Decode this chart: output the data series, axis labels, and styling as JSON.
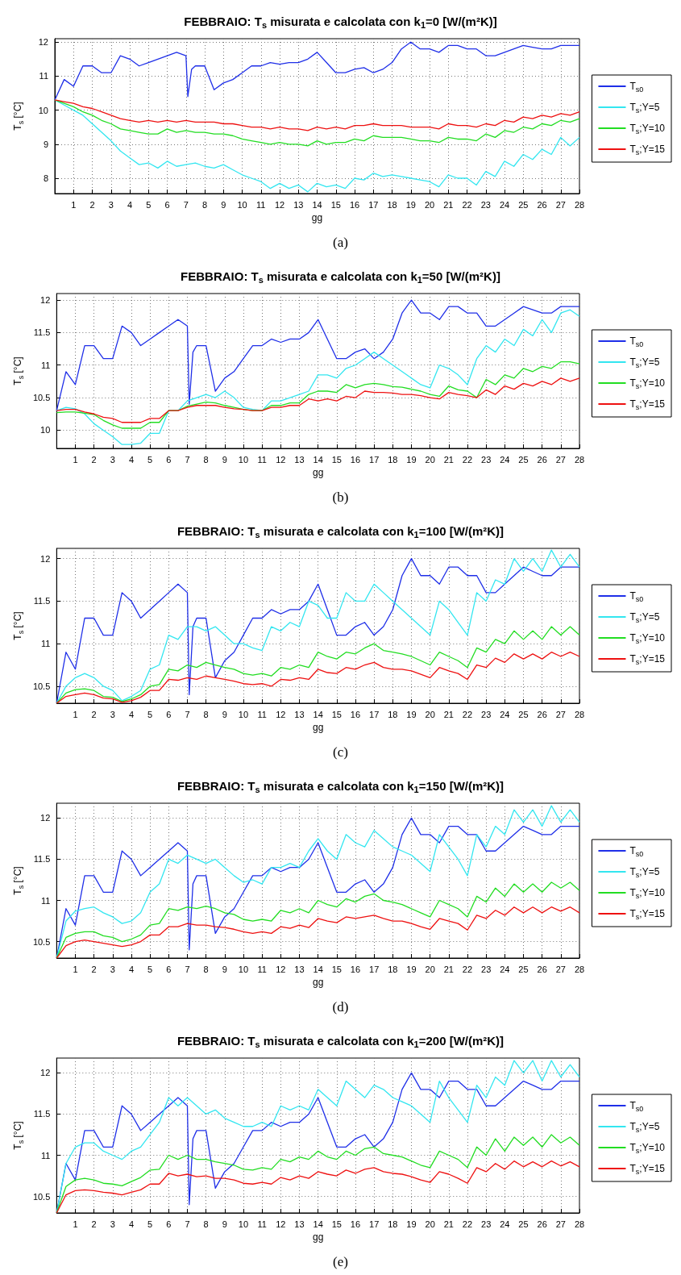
{
  "chart_data": [
    {
      "type": "line",
      "title": "FEBBRAIO: T$_{s}$ misurata e calcolata con k$_{1}$=0 [W/(m²K)]",
      "xlabel": "gg",
      "ylabel": "T$_{s}$ [°C]",
      "annotations": [
        "(a)"
      ],
      "grid": true,
      "legend": "right",
      "marker": "none",
      "line_style": "solid",
      "xlim": [
        0,
        28
      ],
      "xticks": [
        1,
        2,
        3,
        4,
        5,
        6,
        7,
        8,
        9,
        10,
        11,
        12,
        13,
        14,
        15,
        16,
        17,
        18,
        19,
        20,
        21,
        22,
        23,
        24,
        25,
        26,
        27,
        28
      ],
      "ylim": [
        7.55,
        12.1
      ],
      "yticks": [
        8,
        9,
        10,
        11,
        12
      ],
      "x": [
        0,
        0.5,
        1,
        1.5,
        2,
        2.5,
        3,
        3.5,
        4,
        4.5,
        5,
        5.5,
        6,
        6.5,
        7,
        7.5,
        8,
        8.5,
        9,
        9.5,
        10,
        10.5,
        11,
        11.5,
        12,
        12.5,
        13,
        13.5,
        14,
        14.5,
        15,
        15.5,
        16,
        16.5,
        17,
        17.5,
        18,
        18.5,
        19,
        19.5,
        20,
        20.5,
        21,
        21.5,
        22,
        22.5,
        23,
        23.5,
        24,
        24.5,
        25,
        25.5,
        26,
        26.5,
        27,
        27.5,
        28
      ],
      "series": [
        {
          "name": "T$_{s0}$",
          "color": "#1f2fe8",
          "x": [
            0,
            0.5,
            1,
            1.5,
            2,
            2.5,
            3,
            3.5,
            4,
            4.5,
            5,
            5.5,
            6,
            6.5,
            7,
            7.1,
            7.3,
            7.5,
            8,
            8.5,
            9,
            9.5,
            10,
            10.5,
            11,
            11.5,
            12,
            12.5,
            13,
            13.5,
            14,
            14.5,
            15,
            15.5,
            16,
            16.5,
            17,
            17.5,
            18,
            18.5,
            19,
            19.5,
            20,
            20.5,
            21,
            21.5,
            22,
            22.5,
            23,
            23.5,
            24,
            24.5,
            25,
            25.5,
            26,
            26.5,
            27,
            27.5,
            28
          ],
          "values": [
            10.3,
            10.9,
            10.7,
            11.3,
            11.3,
            11.1,
            11.1,
            11.6,
            11.5,
            11.3,
            11.4,
            11.5,
            11.6,
            11.7,
            11.6,
            10.4,
            11.2,
            11.3,
            11.3,
            10.6,
            10.8,
            10.9,
            11.1,
            11.3,
            11.3,
            11.4,
            11.35,
            11.4,
            11.4,
            11.5,
            11.7,
            11.4,
            11.1,
            11.1,
            11.2,
            11.25,
            11.1,
            11.2,
            11.4,
            11.8,
            12.0,
            11.8,
            11.8,
            11.7,
            11.9,
            11.9,
            11.8,
            11.8,
            11.6,
            11.6,
            11.7,
            11.8,
            11.9,
            11.85,
            11.8,
            11.8,
            11.9,
            11.9,
            11.9
          ]
        },
        {
          "name": "T$_{s}$;Y=5",
          "color": "#33e6f0",
          "values": [
            10.3,
            10.15,
            10.0,
            9.85,
            9.6,
            9.35,
            9.1,
            8.8,
            8.6,
            8.4,
            8.45,
            8.3,
            8.5,
            8.35,
            8.4,
            8.45,
            8.35,
            8.3,
            8.4,
            8.25,
            8.1,
            8.0,
            7.9,
            7.7,
            7.85,
            7.7,
            7.8,
            7.6,
            7.85,
            7.75,
            7.8,
            7.7,
            8.0,
            7.95,
            8.15,
            8.05,
            8.1,
            8.05,
            8.0,
            7.95,
            7.9,
            7.75,
            8.1,
            8.0,
            8.0,
            7.8,
            8.2,
            8.05,
            8.5,
            8.35,
            8.7,
            8.55,
            8.85,
            8.7,
            9.2,
            8.95,
            9.2
          ]
        },
        {
          "name": "T$_{s}$;Y=10",
          "color": "#22dd22",
          "values": [
            10.3,
            10.2,
            10.1,
            9.95,
            9.85,
            9.7,
            9.6,
            9.45,
            9.4,
            9.35,
            9.3,
            9.3,
            9.45,
            9.35,
            9.4,
            9.35,
            9.35,
            9.3,
            9.3,
            9.25,
            9.15,
            9.1,
            9.05,
            9.0,
            9.05,
            9.0,
            9.0,
            8.95,
            9.1,
            9.0,
            9.05,
            9.05,
            9.15,
            9.1,
            9.25,
            9.2,
            9.2,
            9.2,
            9.15,
            9.1,
            9.1,
            9.05,
            9.2,
            9.15,
            9.15,
            9.1,
            9.3,
            9.2,
            9.4,
            9.35,
            9.5,
            9.45,
            9.6,
            9.55,
            9.7,
            9.65,
            9.75
          ]
        },
        {
          "name": "T$_{s}$;Y=15",
          "color": "#ee1111",
          "values": [
            10.3,
            10.25,
            10.2,
            10.1,
            10.05,
            9.95,
            9.85,
            9.75,
            9.7,
            9.65,
            9.7,
            9.65,
            9.7,
            9.65,
            9.7,
            9.65,
            9.65,
            9.65,
            9.6,
            9.6,
            9.55,
            9.5,
            9.5,
            9.45,
            9.5,
            9.45,
            9.45,
            9.4,
            9.5,
            9.45,
            9.5,
            9.45,
            9.55,
            9.55,
            9.6,
            9.55,
            9.55,
            9.55,
            9.5,
            9.5,
            9.5,
            9.45,
            9.6,
            9.55,
            9.55,
            9.5,
            9.6,
            9.55,
            9.7,
            9.65,
            9.8,
            9.75,
            9.85,
            9.8,
            9.9,
            9.85,
            9.95
          ]
        }
      ]
    },
    {
      "type": "line",
      "title": "FEBBRAIO: T$_{s}$ misurata e calcolata con k$_{1}$=50 [W/(m²K)]",
      "xlabel": "gg",
      "ylabel": "T$_{s}$ [°C]",
      "annotations": [
        "(b)"
      ],
      "grid": true,
      "legend": "right",
      "marker": "none",
      "line_style": "solid",
      "xlim": [
        0,
        28
      ],
      "xticks": [
        1,
        2,
        3,
        4,
        5,
        6,
        7,
        8,
        9,
        10,
        11,
        12,
        13,
        14,
        15,
        16,
        17,
        18,
        19,
        20,
        21,
        22,
        23,
        24,
        25,
        26,
        27,
        28
      ],
      "ylim": [
        9.72,
        12.1
      ],
      "yticks": [
        10,
        10.5,
        11,
        11.5,
        12
      ],
      "x": [
        0,
        0.5,
        1,
        1.5,
        2,
        2.5,
        3,
        3.5,
        4,
        4.5,
        5,
        5.5,
        6,
        6.5,
        7,
        7.5,
        8,
        8.5,
        9,
        9.5,
        10,
        10.5,
        11,
        11.5,
        12,
        12.5,
        13,
        13.5,
        14,
        14.5,
        15,
        15.5,
        16,
        16.5,
        17,
        17.5,
        18,
        18.5,
        19,
        19.5,
        20,
        20.5,
        21,
        21.5,
        22,
        22.5,
        23,
        23.5,
        24,
        24.5,
        25,
        25.5,
        26,
        26.5,
        27,
        27.5,
        28
      ],
      "series": [
        {
          "name": "T$_{s0}$",
          "color": "#1f2fe8",
          "x": [
            0,
            0.5,
            1,
            1.5,
            2,
            2.5,
            3,
            3.5,
            4,
            4.5,
            5,
            5.5,
            6,
            6.5,
            7,
            7.1,
            7.3,
            7.5,
            8,
            8.5,
            9,
            9.5,
            10,
            10.5,
            11,
            11.5,
            12,
            12.5,
            13,
            13.5,
            14,
            14.5,
            15,
            15.5,
            16,
            16.5,
            17,
            17.5,
            18,
            18.5,
            19,
            19.5,
            20,
            20.5,
            21,
            21.5,
            22,
            22.5,
            23,
            23.5,
            24,
            24.5,
            25,
            25.5,
            26,
            26.5,
            27,
            27.5,
            28
          ],
          "values": [
            10.3,
            10.9,
            10.7,
            11.3,
            11.3,
            11.1,
            11.1,
            11.6,
            11.5,
            11.3,
            11.4,
            11.5,
            11.6,
            11.7,
            11.6,
            10.4,
            11.2,
            11.3,
            11.3,
            10.6,
            10.8,
            10.9,
            11.1,
            11.3,
            11.3,
            11.4,
            11.35,
            11.4,
            11.4,
            11.5,
            11.7,
            11.4,
            11.1,
            11.1,
            11.2,
            11.25,
            11.1,
            11.2,
            11.4,
            11.8,
            12.0,
            11.8,
            11.8,
            11.7,
            11.9,
            11.9,
            11.8,
            11.8,
            11.6,
            11.6,
            11.7,
            11.8,
            11.9,
            11.85,
            11.8,
            11.8,
            11.9,
            11.9,
            11.9
          ]
        },
        {
          "name": "T$_{s}$;Y=5",
          "color": "#33e6f0",
          "values": [
            10.3,
            10.35,
            10.33,
            10.25,
            10.1,
            10.0,
            9.9,
            9.78,
            9.78,
            9.8,
            9.95,
            9.95,
            10.3,
            10.3,
            10.45,
            10.5,
            10.55,
            10.5,
            10.6,
            10.5,
            10.35,
            10.32,
            10.3,
            10.45,
            10.45,
            10.5,
            10.55,
            10.6,
            10.85,
            10.85,
            10.8,
            10.95,
            11.0,
            11.1,
            11.2,
            11.1,
            11.0,
            10.9,
            10.8,
            10.7,
            10.65,
            11.0,
            10.95,
            10.85,
            10.7,
            11.1,
            11.3,
            11.2,
            11.4,
            11.3,
            11.55,
            11.45,
            11.7,
            11.5,
            11.8,
            11.85,
            11.75
          ]
        },
        {
          "name": "T$_{s}$;Y=10",
          "color": "#22dd22",
          "values": [
            10.27,
            10.28,
            10.28,
            10.26,
            10.24,
            10.15,
            10.08,
            10.03,
            10.03,
            10.03,
            10.12,
            10.12,
            10.3,
            10.3,
            10.37,
            10.4,
            10.43,
            10.42,
            10.38,
            10.35,
            10.32,
            10.3,
            10.3,
            10.38,
            10.38,
            10.42,
            10.42,
            10.55,
            10.6,
            10.6,
            10.58,
            10.7,
            10.65,
            10.7,
            10.72,
            10.7,
            10.67,
            10.66,
            10.63,
            10.6,
            10.55,
            10.52,
            10.68,
            10.62,
            10.6,
            10.5,
            10.78,
            10.7,
            10.85,
            10.8,
            10.95,
            10.9,
            10.98,
            10.95,
            11.05,
            11.05,
            11.02
          ]
        },
        {
          "name": "T$_{s}$;Y=15",
          "color": "#ee1111",
          "values": [
            10.3,
            10.32,
            10.32,
            10.28,
            10.25,
            10.2,
            10.18,
            10.12,
            10.12,
            10.12,
            10.18,
            10.18,
            10.3,
            10.3,
            10.35,
            10.38,
            10.38,
            10.38,
            10.35,
            10.33,
            10.32,
            10.3,
            10.3,
            10.35,
            10.35,
            10.38,
            10.38,
            10.48,
            10.45,
            10.48,
            10.45,
            10.52,
            10.5,
            10.6,
            10.58,
            10.58,
            10.57,
            10.55,
            10.55,
            10.53,
            10.5,
            10.48,
            10.58,
            10.55,
            10.53,
            10.5,
            10.62,
            10.55,
            10.68,
            10.63,
            10.72,
            10.68,
            10.75,
            10.7,
            10.8,
            10.75,
            10.8
          ]
        }
      ]
    },
    {
      "type": "line",
      "title": "FEBBRAIO: T$_{s}$ misurata e calcolata con k$_{1}$=100 [W/(m²K)]",
      "xlabel": "gg",
      "ylabel": "T$_{s}$ [°C]",
      "annotations": [
        "(c)"
      ],
      "grid": true,
      "legend": "right",
      "marker": "none",
      "line_style": "solid",
      "xlim": [
        0,
        28
      ],
      "xticks": [
        1,
        2,
        3,
        4,
        5,
        6,
        7,
        8,
        9,
        10,
        11,
        12,
        13,
        14,
        15,
        16,
        17,
        18,
        19,
        20,
        21,
        22,
        23,
        24,
        25,
        26,
        27,
        28
      ],
      "ylim": [
        10.3,
        12.12
      ],
      "yticks": [
        10.5,
        11,
        11.5,
        12
      ],
      "x": [
        0,
        0.5,
        1,
        1.5,
        2,
        2.5,
        3,
        3.5,
        4,
        4.5,
        5,
        5.5,
        6,
        6.5,
        7,
        7.5,
        8,
        8.5,
        9,
        9.5,
        10,
        10.5,
        11,
        11.5,
        12,
        12.5,
        13,
        13.5,
        14,
        14.5,
        15,
        15.5,
        16,
        16.5,
        17,
        17.5,
        18,
        18.5,
        19,
        19.5,
        20,
        20.5,
        21,
        21.5,
        22,
        22.5,
        23,
        23.5,
        24,
        24.5,
        25,
        25.5,
        26,
        26.5,
        27,
        27.5,
        28
      ],
      "series": [
        {
          "name": "T$_{s0}$",
          "color": "#1f2fe8",
          "x": [
            0,
            0.5,
            1,
            1.5,
            2,
            2.5,
            3,
            3.5,
            4,
            4.5,
            5,
            5.5,
            6,
            6.5,
            7,
            7.1,
            7.3,
            7.5,
            8,
            8.5,
            9,
            9.5,
            10,
            10.5,
            11,
            11.5,
            12,
            12.5,
            13,
            13.5,
            14,
            14.5,
            15,
            15.5,
            16,
            16.5,
            17,
            17.5,
            18,
            18.5,
            19,
            19.5,
            20,
            20.5,
            21,
            21.5,
            22,
            22.5,
            23,
            23.5,
            24,
            24.5,
            25,
            25.5,
            26,
            26.5,
            27,
            27.5,
            28
          ],
          "values": [
            10.3,
            10.9,
            10.7,
            11.3,
            11.3,
            11.1,
            11.1,
            11.6,
            11.5,
            11.3,
            11.4,
            11.5,
            11.6,
            11.7,
            11.6,
            10.4,
            11.2,
            11.3,
            11.3,
            10.6,
            10.8,
            10.9,
            11.1,
            11.3,
            11.3,
            11.4,
            11.35,
            11.4,
            11.4,
            11.5,
            11.7,
            11.4,
            11.1,
            11.1,
            11.2,
            11.25,
            11.1,
            11.2,
            11.4,
            11.8,
            12.0,
            11.8,
            11.8,
            11.7,
            11.9,
            11.9,
            11.8,
            11.8,
            11.6,
            11.6,
            11.7,
            11.8,
            11.9,
            11.85,
            11.8,
            11.8,
            11.9,
            11.9,
            11.9
          ]
        },
        {
          "name": "T$_{s}$;Y=5",
          "color": "#33e6f0",
          "values": [
            10.3,
            10.5,
            10.6,
            10.65,
            10.6,
            10.5,
            10.45,
            10.33,
            10.38,
            10.45,
            10.7,
            10.75,
            11.1,
            11.05,
            11.2,
            11.2,
            11.15,
            11.2,
            11.1,
            11.0,
            11.0,
            10.95,
            10.92,
            11.2,
            11.15,
            11.25,
            11.2,
            11.5,
            11.45,
            11.3,
            11.3,
            11.6,
            11.5,
            11.5,
            11.7,
            11.6,
            11.5,
            11.4,
            11.3,
            11.2,
            11.1,
            11.5,
            11.4,
            11.25,
            11.1,
            11.6,
            11.5,
            11.75,
            11.7,
            12.0,
            11.85,
            12.0,
            11.85,
            12.1,
            11.9,
            12.05,
            11.9
          ]
        },
        {
          "name": "T$_{s}$;Y=10",
          "color": "#22dd22",
          "values": [
            10.3,
            10.42,
            10.46,
            10.47,
            10.45,
            10.38,
            10.37,
            10.32,
            10.35,
            10.4,
            10.5,
            10.52,
            10.7,
            10.68,
            10.75,
            10.72,
            10.78,
            10.75,
            10.72,
            10.7,
            10.65,
            10.63,
            10.65,
            10.62,
            10.72,
            10.7,
            10.75,
            10.72,
            10.9,
            10.85,
            10.82,
            10.9,
            10.88,
            10.95,
            11.0,
            10.92,
            10.9,
            10.88,
            10.85,
            10.8,
            10.75,
            10.9,
            10.85,
            10.8,
            10.72,
            10.95,
            10.9,
            11.05,
            11.0,
            11.15,
            11.05,
            11.15,
            11.05,
            11.2,
            11.1,
            11.2,
            11.1
          ]
        },
        {
          "name": "T$_{s}$;Y=15",
          "color": "#ee1111",
          "values": [
            10.3,
            10.38,
            10.4,
            10.42,
            10.4,
            10.36,
            10.35,
            10.31,
            10.33,
            10.37,
            10.45,
            10.45,
            10.58,
            10.57,
            10.6,
            10.58,
            10.62,
            10.6,
            10.58,
            10.56,
            10.53,
            10.52,
            10.53,
            10.5,
            10.58,
            10.57,
            10.6,
            10.58,
            10.7,
            10.66,
            10.65,
            10.72,
            10.7,
            10.75,
            10.78,
            10.72,
            10.7,
            10.7,
            10.68,
            10.64,
            10.6,
            10.72,
            10.68,
            10.65,
            10.58,
            10.75,
            10.72,
            10.83,
            10.78,
            10.88,
            10.82,
            10.88,
            10.82,
            10.9,
            10.85,
            10.9,
            10.85
          ]
        }
      ]
    },
    {
      "type": "line",
      "title": "FEBBRAIO: T$_{s}$ misurata e calcolata con k$_{1}$=150 [W/(m²K)]",
      "xlabel": "gg",
      "ylabel": "T$_{s}$ [°C]",
      "annotations": [
        "(d)"
      ],
      "grid": true,
      "legend": "right",
      "marker": "none",
      "line_style": "solid",
      "xlim": [
        0,
        28
      ],
      "xticks": [
        1,
        2,
        3,
        4,
        5,
        6,
        7,
        8,
        9,
        10,
        11,
        12,
        13,
        14,
        15,
        16,
        17,
        18,
        19,
        20,
        21,
        22,
        23,
        24,
        25,
        26,
        27,
        28
      ],
      "ylim": [
        10.3,
        12.18
      ],
      "yticks": [
        10.5,
        11,
        11.5,
        12
      ],
      "x": [
        0,
        0.5,
        1,
        1.5,
        2,
        2.5,
        3,
        3.5,
        4,
        4.5,
        5,
        5.5,
        6,
        6.5,
        7,
        7.5,
        8,
        8.5,
        9,
        9.5,
        10,
        10.5,
        11,
        11.5,
        12,
        12.5,
        13,
        13.5,
        14,
        14.5,
        15,
        15.5,
        16,
        16.5,
        17,
        17.5,
        18,
        18.5,
        19,
        19.5,
        20,
        20.5,
        21,
        21.5,
        22,
        22.5,
        23,
        23.5,
        24,
        24.5,
        25,
        25.5,
        26,
        26.5,
        27,
        27.5,
        28
      ],
      "series": [
        {
          "name": "T$_{s0}$",
          "color": "#1f2fe8",
          "x": [
            0,
            0.5,
            1,
            1.5,
            2,
            2.5,
            3,
            3.5,
            4,
            4.5,
            5,
            5.5,
            6,
            6.5,
            7,
            7.1,
            7.3,
            7.5,
            8,
            8.5,
            9,
            9.5,
            10,
            10.5,
            11,
            11.5,
            12,
            12.5,
            13,
            13.5,
            14,
            14.5,
            15,
            15.5,
            16,
            16.5,
            17,
            17.5,
            18,
            18.5,
            19,
            19.5,
            20,
            20.5,
            21,
            21.5,
            22,
            22.5,
            23,
            23.5,
            24,
            24.5,
            25,
            25.5,
            26,
            26.5,
            27,
            27.5,
            28
          ],
          "values": [
            10.3,
            10.9,
            10.7,
            11.3,
            11.3,
            11.1,
            11.1,
            11.6,
            11.5,
            11.3,
            11.4,
            11.5,
            11.6,
            11.7,
            11.6,
            10.4,
            11.2,
            11.3,
            11.3,
            10.6,
            10.8,
            10.9,
            11.1,
            11.3,
            11.3,
            11.4,
            11.35,
            11.4,
            11.4,
            11.5,
            11.7,
            11.4,
            11.1,
            11.1,
            11.2,
            11.25,
            11.1,
            11.2,
            11.4,
            11.8,
            12.0,
            11.8,
            11.8,
            11.7,
            11.9,
            11.9,
            11.8,
            11.8,
            11.6,
            11.6,
            11.7,
            11.8,
            11.9,
            11.85,
            11.8,
            11.8,
            11.9,
            11.9,
            11.9
          ]
        },
        {
          "name": "T$_{s}$;Y=5",
          "color": "#33e6f0",
          "values": [
            10.3,
            10.75,
            10.87,
            10.9,
            10.92,
            10.85,
            10.8,
            10.72,
            10.75,
            10.85,
            11.1,
            11.2,
            11.5,
            11.45,
            11.55,
            11.5,
            11.45,
            11.5,
            11.4,
            11.3,
            11.22,
            11.25,
            11.2,
            11.4,
            11.4,
            11.45,
            11.4,
            11.6,
            11.75,
            11.6,
            11.5,
            11.8,
            11.7,
            11.65,
            11.85,
            11.75,
            11.65,
            11.6,
            11.55,
            11.45,
            11.35,
            11.8,
            11.65,
            11.5,
            11.3,
            11.8,
            11.65,
            11.9,
            11.8,
            12.1,
            11.95,
            12.1,
            11.9,
            12.15,
            11.95,
            12.1,
            11.95
          ]
        },
        {
          "name": "T$_{s}$;Y=10",
          "color": "#22dd22",
          "values": [
            10.3,
            10.55,
            10.6,
            10.62,
            10.62,
            10.57,
            10.55,
            10.5,
            10.53,
            10.58,
            10.7,
            10.72,
            10.9,
            10.88,
            10.92,
            10.9,
            10.93,
            10.9,
            10.85,
            10.83,
            10.77,
            10.75,
            10.77,
            10.75,
            10.88,
            10.85,
            10.9,
            10.85,
            11.0,
            10.95,
            10.92,
            11.02,
            10.98,
            11.05,
            11.08,
            11.0,
            10.98,
            10.95,
            10.9,
            10.85,
            10.8,
            11.0,
            10.95,
            10.9,
            10.8,
            11.05,
            10.98,
            11.15,
            11.05,
            11.2,
            11.1,
            11.2,
            11.1,
            11.22,
            11.15,
            11.22,
            11.12
          ]
        },
        {
          "name": "T$_{s}$;Y=15",
          "color": "#ee1111",
          "values": [
            10.3,
            10.45,
            10.5,
            10.52,
            10.5,
            10.48,
            10.46,
            10.44,
            10.46,
            10.5,
            10.58,
            10.58,
            10.68,
            10.68,
            10.72,
            10.7,
            10.7,
            10.68,
            10.67,
            10.65,
            10.62,
            10.6,
            10.62,
            10.6,
            10.68,
            10.66,
            10.7,
            10.67,
            10.78,
            10.75,
            10.73,
            10.8,
            10.78,
            10.8,
            10.82,
            10.78,
            10.75,
            10.75,
            10.72,
            10.68,
            10.65,
            10.78,
            10.75,
            10.72,
            10.64,
            10.82,
            10.78,
            10.88,
            10.82,
            10.92,
            10.85,
            10.92,
            10.85,
            10.92,
            10.87,
            10.92,
            10.85
          ]
        }
      ]
    },
    {
      "type": "line",
      "title": "FEBBRAIO: T$_{s}$ misurata e calcolata con k$_{1}$=200 [W/(m²K)]",
      "xlabel": "gg",
      "ylabel": "T$_{s}$ [°C]",
      "annotations": [
        "(e)"
      ],
      "grid": true,
      "legend": "right",
      "marker": "none",
      "line_style": "solid",
      "xlim": [
        0,
        28
      ],
      "xticks": [
        1,
        2,
        3,
        4,
        5,
        6,
        7,
        8,
        9,
        10,
        11,
        12,
        13,
        14,
        15,
        16,
        17,
        18,
        19,
        20,
        21,
        22,
        23,
        24,
        25,
        26,
        27,
        28
      ],
      "ylim": [
        10.3,
        12.18
      ],
      "yticks": [
        10.5,
        11,
        11.5,
        12
      ],
      "x": [
        0,
        0.5,
        1,
        1.5,
        2,
        2.5,
        3,
        3.5,
        4,
        4.5,
        5,
        5.5,
        6,
        6.5,
        7,
        7.5,
        8,
        8.5,
        9,
        9.5,
        10,
        10.5,
        11,
        11.5,
        12,
        12.5,
        13,
        13.5,
        14,
        14.5,
        15,
        15.5,
        16,
        16.5,
        17,
        17.5,
        18,
        18.5,
        19,
        19.5,
        20,
        20.5,
        21,
        21.5,
        22,
        22.5,
        23,
        23.5,
        24,
        24.5,
        25,
        25.5,
        26,
        26.5,
        27,
        27.5,
        28
      ],
      "series": [
        {
          "name": "T$_{s0}$",
          "color": "#1f2fe8",
          "x": [
            0,
            0.5,
            1,
            1.5,
            2,
            2.5,
            3,
            3.5,
            4,
            4.5,
            5,
            5.5,
            6,
            6.5,
            7,
            7.1,
            7.3,
            7.5,
            8,
            8.5,
            9,
            9.5,
            10,
            10.5,
            11,
            11.5,
            12,
            12.5,
            13,
            13.5,
            14,
            14.5,
            15,
            15.5,
            16,
            16.5,
            17,
            17.5,
            18,
            18.5,
            19,
            19.5,
            20,
            20.5,
            21,
            21.5,
            22,
            22.5,
            23,
            23.5,
            24,
            24.5,
            25,
            25.5,
            26,
            26.5,
            27,
            27.5,
            28
          ],
          "values": [
            10.3,
            10.9,
            10.7,
            11.3,
            11.3,
            11.1,
            11.1,
            11.6,
            11.5,
            11.3,
            11.4,
            11.5,
            11.6,
            11.7,
            11.6,
            10.4,
            11.2,
            11.3,
            11.3,
            10.6,
            10.8,
            10.9,
            11.1,
            11.3,
            11.3,
            11.4,
            11.35,
            11.4,
            11.4,
            11.5,
            11.7,
            11.4,
            11.1,
            11.1,
            11.2,
            11.25,
            11.1,
            11.2,
            11.4,
            11.8,
            12.0,
            11.8,
            11.8,
            11.7,
            11.9,
            11.9,
            11.8,
            11.8,
            11.6,
            11.6,
            11.7,
            11.8,
            11.9,
            11.85,
            11.8,
            11.8,
            11.9,
            11.9,
            11.9
          ]
        },
        {
          "name": "T$_{s}$;Y=5",
          "color": "#33e6f0",
          "values": [
            10.3,
            10.9,
            11.1,
            11.15,
            11.15,
            11.05,
            11.0,
            10.95,
            11.05,
            11.1,
            11.25,
            11.4,
            11.7,
            11.6,
            11.7,
            11.6,
            11.5,
            11.55,
            11.45,
            11.4,
            11.35,
            11.35,
            11.4,
            11.35,
            11.6,
            11.55,
            11.6,
            11.55,
            11.8,
            11.7,
            11.6,
            11.9,
            11.8,
            11.7,
            11.85,
            11.8,
            11.7,
            11.65,
            11.6,
            11.5,
            11.4,
            11.9,
            11.7,
            11.55,
            11.4,
            11.85,
            11.7,
            11.95,
            11.85,
            12.15,
            12.0,
            12.15,
            11.9,
            12.15,
            11.95,
            12.1,
            11.95
          ]
        },
        {
          "name": "T$_{s}$;Y=10",
          "color": "#22dd22",
          "values": [
            10.3,
            10.62,
            10.7,
            10.72,
            10.7,
            10.66,
            10.65,
            10.63,
            10.68,
            10.73,
            10.82,
            10.83,
            11.0,
            10.95,
            11.0,
            10.95,
            10.95,
            10.92,
            10.9,
            10.88,
            10.83,
            10.82,
            10.85,
            10.83,
            10.95,
            10.92,
            10.98,
            10.95,
            11.05,
            10.98,
            10.95,
            11.05,
            11.0,
            11.08,
            11.1,
            11.02,
            11.0,
            10.98,
            10.93,
            10.88,
            10.85,
            11.05,
            11.0,
            10.95,
            10.85,
            11.1,
            11.0,
            11.2,
            11.05,
            11.22,
            11.12,
            11.22,
            11.1,
            11.25,
            11.15,
            11.22,
            11.12
          ]
        },
        {
          "name": "T$_{s}$;Y=15",
          "color": "#ee1111",
          "values": [
            10.3,
            10.52,
            10.57,
            10.58,
            10.57,
            10.55,
            10.54,
            10.52,
            10.55,
            10.58,
            10.65,
            10.65,
            10.78,
            10.75,
            10.77,
            10.74,
            10.75,
            10.72,
            10.72,
            10.7,
            10.66,
            10.65,
            10.67,
            10.65,
            10.73,
            10.7,
            10.75,
            10.72,
            10.8,
            10.77,
            10.75,
            10.82,
            10.78,
            10.83,
            10.85,
            10.8,
            10.78,
            10.77,
            10.74,
            10.7,
            10.67,
            10.8,
            10.77,
            10.72,
            10.66,
            10.85,
            10.8,
            10.9,
            10.83,
            10.93,
            10.86,
            10.92,
            10.86,
            10.93,
            10.87,
            10.92,
            10.86
          ]
        }
      ]
    }
  ]
}
